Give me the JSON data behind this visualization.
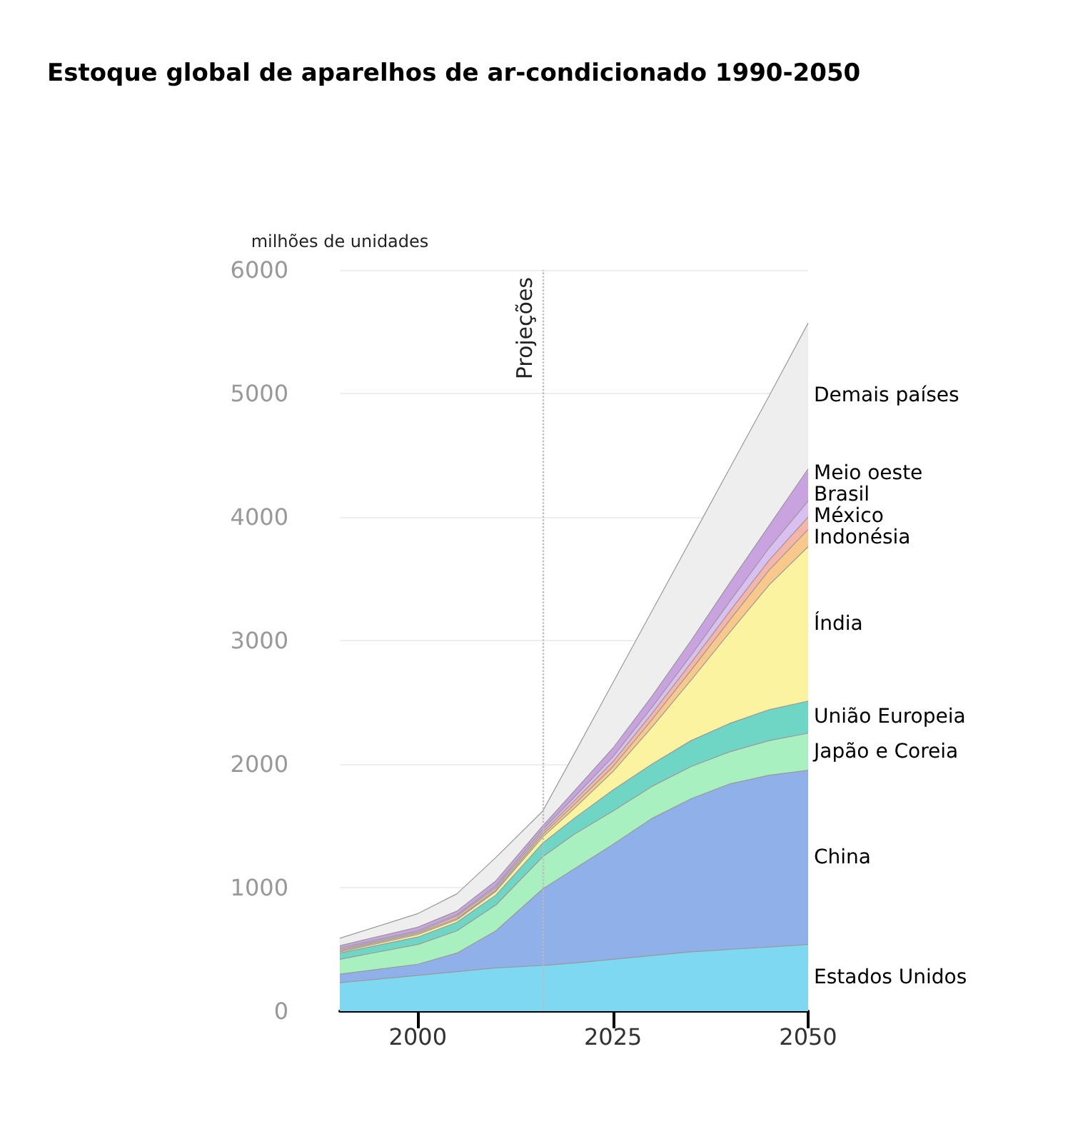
{
  "chart_data": {
    "type": "area",
    "stacked": true,
    "title": "Estoque global de aparelhos de ar-condicionado 1990-2050",
    "ylabel": "milhões de unidades",
    "x": [
      1990,
      2000,
      2005,
      2010,
      2016,
      2020,
      2025,
      2030,
      2035,
      2040,
      2045,
      2050
    ],
    "xlim": [
      1990,
      2050
    ],
    "xticks": [
      2000,
      2025,
      2050
    ],
    "ylim": [
      0,
      6000
    ],
    "yticks": [
      0,
      1000,
      2000,
      3000,
      4000,
      5000,
      6000
    ],
    "grid": "y",
    "legend": false,
    "marker": "none",
    "ref_lines": [
      {
        "axis": "x",
        "value": 2016,
        "label": "Projeções",
        "line_style": "dotted",
        "color": "#bbbbbb"
      }
    ],
    "series": [
      {
        "name": "Estados Unidos",
        "color": "#7fd8f2",
        "values": [
          230,
          290,
          320,
          350,
          370,
          390,
          420,
          450,
          480,
          500,
          520,
          540
        ]
      },
      {
        "name": "China",
        "color": "#8fb0e8",
        "values": [
          70,
          90,
          150,
          300,
          620,
          760,
          930,
          1110,
          1240,
          1340,
          1390,
          1410
        ]
      },
      {
        "name": "Japão e Coreia",
        "color": "#a8f0c0",
        "values": [
          120,
          160,
          180,
          210,
          260,
          280,
          270,
          260,
          260,
          260,
          280,
          300
        ]
      },
      {
        "name": "União Europeia",
        "color": "#6fd6c6",
        "values": [
          50,
          60,
          70,
          80,
          110,
          130,
          170,
          180,
          210,
          230,
          250,
          260
        ]
      },
      {
        "name": "Índia",
        "color": "#fbf3a0",
        "values": [
          10,
          20,
          20,
          30,
          50,
          80,
          150,
          300,
          490,
          740,
          1010,
          1250
        ]
      },
      {
        "name": "Indonésia",
        "color": "#f9c98c",
        "values": [
          10,
          10,
          10,
          10,
          20,
          30,
          40,
          60,
          80,
          100,
          120,
          140
        ]
      },
      {
        "name": "México",
        "color": "#f5b5a8",
        "values": [
          10,
          10,
          20,
          20,
          20,
          30,
          40,
          50,
          60,
          70,
          80,
          100
        ]
      },
      {
        "name": "Brasil",
        "color": "#d9c0f0",
        "values": [
          10,
          10,
          10,
          15,
          20,
          30,
          40,
          50,
          60,
          80,
          100,
          130
        ]
      },
      {
        "name": "Meio oeste",
        "color": "#c9a3e0",
        "values": [
          20,
          30,
          30,
          40,
          30,
          50,
          70,
          90,
          120,
          150,
          180,
          260
        ]
      },
      {
        "name": "Demais países",
        "color": "#eeeeee",
        "values": [
          60,
          110,
          140,
          190,
          120,
          300,
          530,
          690,
          820,
          930,
          1050,
          1180
        ]
      }
    ]
  }
}
